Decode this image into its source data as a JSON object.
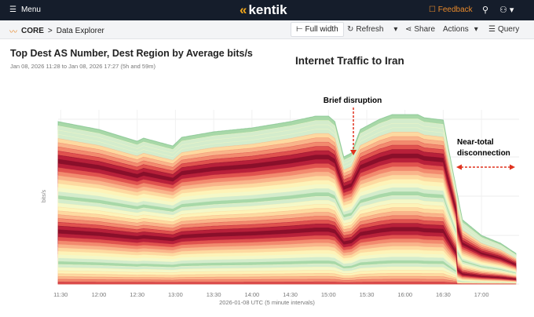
{
  "header": {
    "menu_label": "Menu",
    "logo": "kentik",
    "feedback_label": "Feedback",
    "search_icon": "search-icon",
    "user_icon": "user-icon"
  },
  "subheader": {
    "breadcrumb_root": "CORE",
    "breadcrumb_sep": ">",
    "breadcrumb_page": "Data Explorer",
    "full_width": "Full width",
    "refresh": "Refresh",
    "share": "Share",
    "actions": "Actions",
    "query": "Query"
  },
  "panel": {
    "title": "Top Dest AS Number, Dest Region by Average bits/s",
    "range": "Jan 08, 2026 11:28 to Jan 08, 2026 17:27 (5h and 59m)"
  },
  "chart_data": {
    "type": "area",
    "stacked": true,
    "title": "Internet Traffic to Iran",
    "xlabel": "2026-01-08 UTC (5 minute intervals)",
    "ylabel": "bits/s",
    "x_ticks": [
      "11:30",
      "12:00",
      "12:30",
      "13:00",
      "13:30",
      "14:00",
      "14:30",
      "15:00",
      "15:30",
      "16:00",
      "16:30",
      "17:00"
    ],
    "grid": true,
    "legend": "none",
    "total_relative": [
      [
        "11:28",
        207
      ],
      [
        "12:00",
        197
      ],
      [
        "12:30",
        182
      ],
      [
        "12:35",
        186
      ],
      [
        "12:58",
        176
      ],
      [
        "13:05",
        187
      ],
      [
        "13:30",
        194
      ],
      [
        "14:00",
        199
      ],
      [
        "14:30",
        207
      ],
      [
        "14:50",
        214
      ],
      [
        "15:00",
        214
      ],
      [
        "15:05",
        207
      ],
      [
        "15:12",
        162
      ],
      [
        "15:18",
        167
      ],
      [
        "15:25",
        197
      ],
      [
        "15:40",
        210
      ],
      [
        "15:50",
        216
      ],
      [
        "16:10",
        216
      ],
      [
        "16:15",
        212
      ],
      [
        "16:30",
        209
      ],
      [
        "16:33",
        182
      ],
      [
        "16:45",
        82
      ],
      [
        "17:00",
        62
      ],
      [
        "17:15",
        52
      ],
      [
        "17:27",
        39
      ]
    ],
    "palette": [
      "#a8d8a8",
      "#d4eccc",
      "#f4f8c8",
      "#fdf3b8",
      "#fdd9a0",
      "#f9b48a",
      "#f28a6e",
      "#e0524e",
      "#b8203a",
      "#8a0f2a"
    ],
    "annotations": [
      {
        "text": "Brief disruption",
        "at": "15:12"
      },
      {
        "text1": "Near-total",
        "text2": "disconnection",
        "at": "16:35 onward"
      }
    ],
    "annotation_color": "#e0321e"
  }
}
